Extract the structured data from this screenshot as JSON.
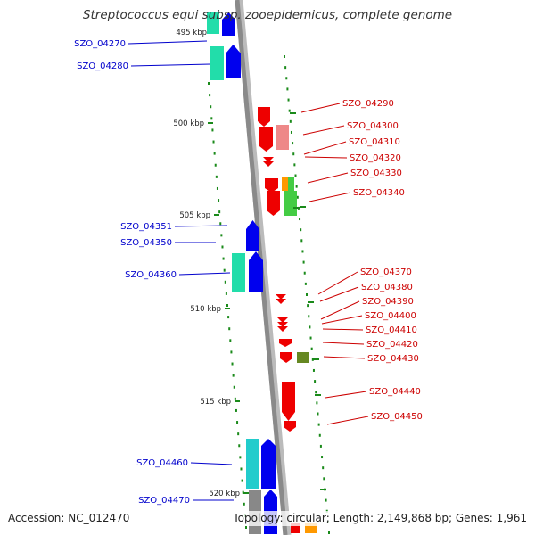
{
  "title": "Streptococcus equi subsp. zooepidemicus, complete genome",
  "footer": {
    "accession": "Accession: NC_012470",
    "topology": "Topology: circular; Length: 2,149,868 bp; Genes: 1,961"
  },
  "colors": {
    "backbone": "#8a8a8a",
    "tick_green": "#1a8a1a",
    "left_label": "#0000cc",
    "right_label": "#cc0000",
    "forward_gene": "#0000ee",
    "reverse_gene": "#ee0000",
    "cog_teal": "#22ddaa",
    "cog_cyan": "#22cccc",
    "cog_pink": "#ee8888",
    "cog_green": "#44cc44",
    "cog_orange": "#ff9900",
    "cog_olive": "#668822",
    "cog_gray": "#888888"
  },
  "scale_labels": [
    "495 kbp",
    "500 kbp",
    "505 kbp",
    "510 kbp",
    "515 kbp",
    "520 kbp"
  ],
  "left_genes": [
    "SZO_04270",
    "SZO_04280",
    "SZO_04351",
    "SZO_04350",
    "SZO_04360",
    "SZO_04460",
    "SZO_04470"
  ],
  "right_genes": [
    "SZO_04290",
    "SZO_04300",
    "SZO_04310",
    "SZO_04320",
    "SZO_04330",
    "SZO_04340",
    "SZO_04370",
    "SZO_04380",
    "SZO_04390",
    "SZO_04400",
    "SZO_04410",
    "SZO_04420",
    "SZO_04430",
    "SZO_04440",
    "SZO_04450"
  ]
}
